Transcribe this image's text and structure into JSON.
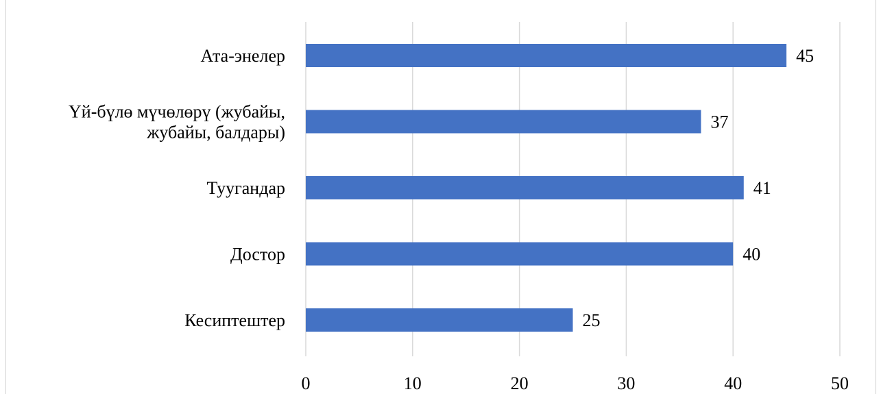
{
  "chart_data": {
    "type": "bar",
    "orientation": "horizontal",
    "categories": [
      [
        "Ата-энелер"
      ],
      [
        "Үй-бүлө мүчөлөрү (жубайы,",
        "жубайы, балдары)"
      ],
      [
        "Туугандар"
      ],
      [
        "Достор"
      ],
      [
        "Кесиптештер"
      ]
    ],
    "values": [
      45,
      37,
      41,
      40,
      25
    ],
    "xlim": [
      0,
      50
    ],
    "xticks": [
      0,
      10,
      20,
      30,
      40,
      50
    ],
    "grid": true,
    "data_labels": true,
    "bar_color": "#4472C4"
  }
}
